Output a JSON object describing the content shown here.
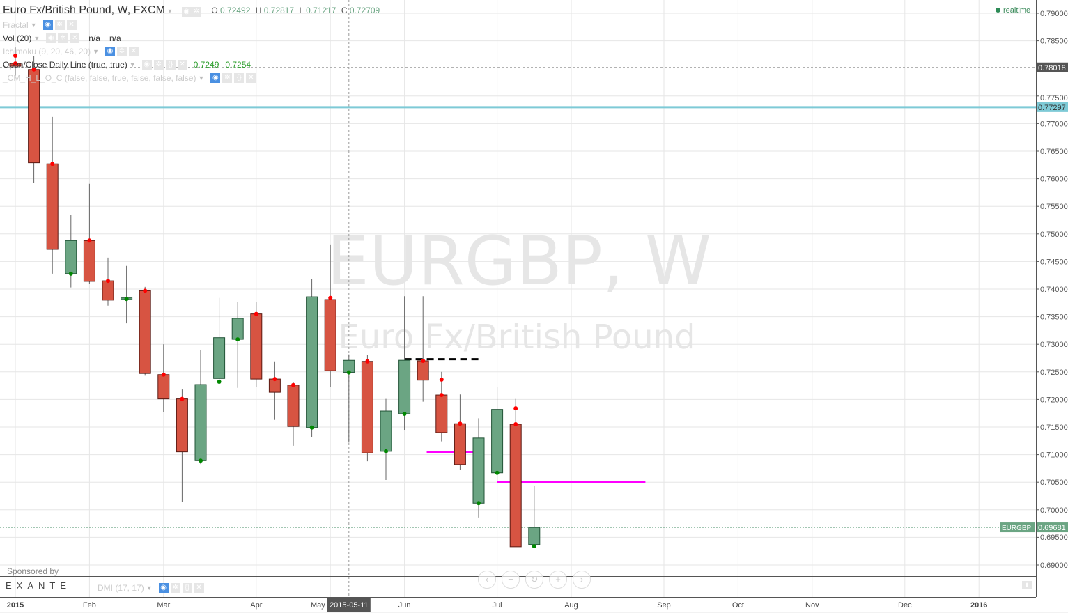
{
  "header": {
    "title": "Euro Fx/British Pound, W, FXCM",
    "ohlc": {
      "o_label": "O",
      "o": "0.72492",
      "h_label": "H",
      "h": "0.72817",
      "l_label": "L",
      "l": "0.71217",
      "c_label": "C",
      "c": "0.72709"
    }
  },
  "indicators": [
    {
      "name": "Fractal",
      "values": [],
      "faded": true
    },
    {
      "name": "Vol (20)",
      "values": [
        "n/a",
        "n/a"
      ],
      "faded": false
    },
    {
      "name": "Ichimoku (9, 20, 46, 20)",
      "values": [],
      "faded": true
    },
    {
      "name": "Open/Close Daily Line (true, true)",
      "values": [
        "0.7249",
        "0.7254"
      ],
      "faded": false
    },
    {
      "name": "_CM_H_L_O_C (false, false, true, false, false, false)",
      "values": [],
      "faded": true
    }
  ],
  "lower_pane": {
    "indicator": "DMI (17, 17)"
  },
  "realtime_label": "realtime",
  "sponsor": {
    "label": "Sponsored by",
    "logo_text": "EXANTE"
  },
  "nav_buttons": [
    "‹",
    "−",
    "↻",
    "+",
    "›"
  ],
  "colors": {
    "up": "#6ba583",
    "down": "#d75442",
    "up_border": "#225437",
    "down_border": "#5b1a13",
    "cyan_line": "#7ecad6",
    "magenta": "#ff00ff",
    "grid": "#e6e6e6"
  },
  "chart_data": {
    "type": "candlestick",
    "symbol_watermark": "EURGBP, W",
    "name_watermark": "Euro Fx/British Pound",
    "first_date": "2015-01-05",
    "interval": "weekly",
    "ylim": [
      0.6875,
      0.7925
    ],
    "grid": true,
    "yticks": [
      "0.79000",
      "0.78500",
      "0.77500",
      "0.77000",
      "0.76500",
      "0.76000",
      "0.75500",
      "0.75000",
      "0.74500",
      "0.74000",
      "0.73500",
      "0.73000",
      "0.72500",
      "0.72000",
      "0.71500",
      "0.71000",
      "0.70500",
      "0.70000",
      "0.69500",
      "0.69000"
    ],
    "xticks": [
      {
        "date": "2015-01-05",
        "label": "2015",
        "bold": true
      },
      {
        "date": "2015-02-02",
        "label": "Feb"
      },
      {
        "date": "2015-03-02",
        "label": "Mar"
      },
      {
        "date": "2015-04-06",
        "label": "Apr"
      },
      {
        "date": "2015-05-04",
        "label": "May"
      },
      {
        "date": "2015-06-01",
        "label": "Jun"
      },
      {
        "date": "2015-07-06",
        "label": "Jul"
      },
      {
        "date": "2015-08-03",
        "label": "Aug"
      },
      {
        "date": "2015-09-07",
        "label": "Sep"
      },
      {
        "date": "2015-10-05",
        "label": "Oct"
      },
      {
        "date": "2015-11-02",
        "label": "Nov"
      },
      {
        "date": "2015-12-07",
        "label": "Dec"
      },
      {
        "date": "2016-01-04",
        "label": "2016",
        "bold": true
      }
    ],
    "crosshair": {
      "date": "2015-05-11",
      "label": "2015-05-11"
    },
    "candles": [
      {
        "o": 0.7809,
        "h": 0.7838,
        "l": 0.7785,
        "c": 0.7804
      },
      {
        "o": 0.7798,
        "h": 0.7823,
        "l": 0.7593,
        "c": 0.7629
      },
      {
        "o": 0.7627,
        "h": 0.7712,
        "l": 0.7428,
        "c": 0.7472
      },
      {
        "o": 0.7428,
        "h": 0.7535,
        "l": 0.7403,
        "c": 0.7488
      },
      {
        "o": 0.7488,
        "h": 0.7591,
        "l": 0.741,
        "c": 0.7414
      },
      {
        "o": 0.7415,
        "h": 0.7457,
        "l": 0.737,
        "c": 0.738
      },
      {
        "o": 0.7381,
        "h": 0.7442,
        "l": 0.7338,
        "c": 0.7384
      },
      {
        "o": 0.7397,
        "h": 0.7404,
        "l": 0.7243,
        "c": 0.7247
      },
      {
        "o": 0.7245,
        "h": 0.73,
        "l": 0.7177,
        "c": 0.7201
      },
      {
        "o": 0.7201,
        "h": 0.7218,
        "l": 0.7014,
        "c": 0.7105
      },
      {
        "o": 0.7089,
        "h": 0.729,
        "l": 0.7083,
        "c": 0.7227
      },
      {
        "o": 0.7238,
        "h": 0.7384,
        "l": 0.7232,
        "c": 0.7312
      },
      {
        "o": 0.7309,
        "h": 0.7377,
        "l": 0.7221,
        "c": 0.7347
      },
      {
        "o": 0.7355,
        "h": 0.7377,
        "l": 0.7222,
        "c": 0.7237
      },
      {
        "o": 0.7237,
        "h": 0.7269,
        "l": 0.7163,
        "c": 0.7213
      },
      {
        "o": 0.7226,
        "h": 0.7232,
        "l": 0.7116,
        "c": 0.7151
      },
      {
        "o": 0.7149,
        "h": 0.7418,
        "l": 0.7131,
        "c": 0.7386
      },
      {
        "o": 0.7381,
        "h": 0.7481,
        "l": 0.7223,
        "c": 0.7252
      },
      {
        "o": 0.72492,
        "h": 0.72817,
        "l": 0.71217,
        "c": 0.72709
      },
      {
        "o": 0.7269,
        "h": 0.7281,
        "l": 0.7088,
        "c": 0.7103
      },
      {
        "o": 0.7106,
        "h": 0.7201,
        "l": 0.7054,
        "c": 0.7179
      },
      {
        "o": 0.7174,
        "h": 0.7387,
        "l": 0.7145,
        "c": 0.7271
      },
      {
        "o": 0.727,
        "h": 0.7387,
        "l": 0.7196,
        "c": 0.7235
      },
      {
        "o": 0.7208,
        "h": 0.725,
        "l": 0.7124,
        "c": 0.714
      },
      {
        "o": 0.7156,
        "h": 0.7209,
        "l": 0.7073,
        "c": 0.7082
      },
      {
        "o": 0.7012,
        "h": 0.7166,
        "l": 0.6986,
        "c": 0.713
      },
      {
        "o": 0.7067,
        "h": 0.7222,
        "l": 0.7053,
        "c": 0.7182
      },
      {
        "o": 0.7155,
        "h": 0.7201,
        "l": 0.6933,
        "c": 0.6933
      },
      {
        "o": 0.6937,
        "h": 0.7044,
        "l": 0.6937,
        "c": 0.6968
      }
    ],
    "red_markers": [
      [
        0,
        0.7823
      ],
      [
        0,
        0.7809
      ],
      [
        1,
        0.7798
      ],
      [
        2,
        0.7627
      ],
      [
        4,
        0.7488
      ],
      [
        5,
        0.7415
      ],
      [
        7,
        0.7397
      ],
      [
        8,
        0.7245
      ],
      [
        9,
        0.7201
      ],
      [
        13,
        0.7355
      ],
      [
        14,
        0.7237
      ],
      [
        15,
        0.7226
      ],
      [
        17,
        0.7384
      ],
      [
        19,
        0.7269
      ],
      [
        22,
        0.727
      ],
      [
        23,
        0.7236
      ],
      [
        23,
        0.7208
      ],
      [
        24,
        0.7156
      ],
      [
        27,
        0.7184
      ],
      [
        27,
        0.7155
      ]
    ],
    "green_markers": [
      [
        3,
        0.7428
      ],
      [
        6,
        0.7382
      ],
      [
        10,
        0.7089
      ],
      [
        11,
        0.7232
      ],
      [
        12,
        0.7309
      ],
      [
        16,
        0.7149
      ],
      [
        18,
        0.7249
      ],
      [
        20,
        0.7106
      ],
      [
        21,
        0.7174
      ],
      [
        25,
        0.7012
      ],
      [
        26,
        0.7067
      ],
      [
        28,
        0.6934
      ]
    ],
    "hlines": [
      {
        "price": 0.77297,
        "label": "0.77297",
        "style": "cyan"
      },
      {
        "price": 0.78018,
        "label": "0.78018",
        "style": "dashed-gray"
      },
      {
        "price": 0.69681,
        "label": "0.69681",
        "tag": "EURGBP",
        "style": "dotted-green"
      }
    ],
    "segments": [
      {
        "price": 0.7273,
        "from": 21,
        "to": 25,
        "style": "black-dashed"
      },
      {
        "price": 0.7104,
        "from": 22.2,
        "to": 24.8,
        "style": "magenta"
      },
      {
        "price": 0.705,
        "from": 26,
        "to": 34,
        "style": "magenta"
      }
    ]
  }
}
